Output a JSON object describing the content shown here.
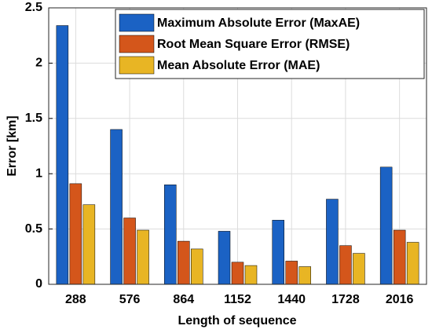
{
  "chart_data": {
    "type": "bar",
    "x_label": "Length of sequence",
    "y_label": "Error [km]",
    "categories": [
      "288",
      "576",
      "864",
      "1152",
      "1440",
      "1728",
      "2016"
    ],
    "series": [
      {
        "name": "Maximum Absolute Error (MaxAE)",
        "color": "#1b62c4",
        "values": [
          2.34,
          1.4,
          0.9,
          0.48,
          0.58,
          0.77,
          1.06
        ]
      },
      {
        "name": "Root Mean Square Error (RMSE)",
        "color": "#d4561b",
        "values": [
          0.91,
          0.6,
          0.39,
          0.2,
          0.21,
          0.35,
          0.49
        ]
      },
      {
        "name": "Mean Absolute Error (MAE)",
        "color": "#e8b524",
        "values": [
          0.72,
          0.49,
          0.32,
          0.17,
          0.16,
          0.28,
          0.38
        ]
      }
    ],
    "ylim": [
      0,
      2.5
    ],
    "yticks": [
      0,
      0.5,
      1,
      1.5,
      2,
      2.5
    ],
    "grid": true,
    "legend": "top-right"
  }
}
